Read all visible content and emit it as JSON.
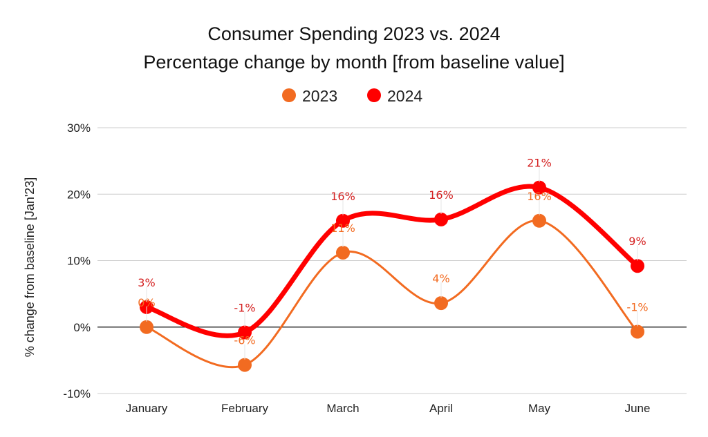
{
  "chart_data": {
    "type": "line",
    "title": "Consumer Spending 2023 vs. 2024",
    "subtitle": "Percentage change by month [from baseline value]",
    "xlabel": "",
    "ylabel": "% change from baseline [Jan'23]",
    "categories": [
      "January",
      "February",
      "March",
      "April",
      "May",
      "June"
    ],
    "ylim": [
      -10,
      30
    ],
    "yticks": [
      30,
      20,
      10,
      0,
      -10
    ],
    "ytick_labels": [
      "30%",
      "20%",
      "10%",
      "0%",
      "-10%"
    ],
    "grid": true,
    "smooth": true,
    "legend": {
      "position": "top-center",
      "entries": [
        "2023",
        "2024"
      ]
    },
    "series": [
      {
        "name": "2023",
        "color": "#F26B21",
        "values": [
          0,
          -5.7,
          11.2,
          3.6,
          16,
          -0.7
        ],
        "labels": [
          "0%",
          "-6%",
          "11%",
          "4%",
          "16%",
          "-1%"
        ]
      },
      {
        "name": "2024",
        "color": "#FF0000",
        "label_color": "#D42020",
        "values": [
          3,
          -0.8,
          16,
          16.2,
          21,
          9.2
        ],
        "labels": [
          "3%",
          "-1%",
          "16%",
          "16%",
          "21%",
          "9%"
        ]
      }
    ]
  }
}
